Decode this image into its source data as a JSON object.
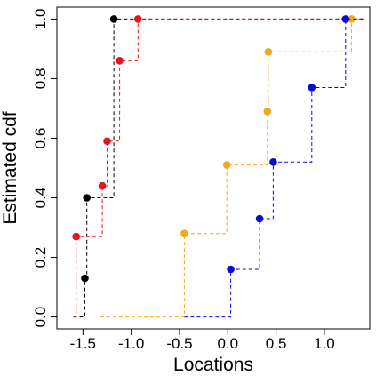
{
  "chart_data": {
    "type": "line",
    "subtype": "empirical-cdf-step",
    "title": "",
    "xlabel": "Locations",
    "ylabel": "Estimated cdf",
    "xlim": [
      -1.65,
      1.35
    ],
    "ylim": [
      0.0,
      1.0
    ],
    "x_ticks": [
      -1.5,
      -1.0,
      -0.5,
      0.0,
      0.5,
      1.0
    ],
    "x_tick_labels": [
      "-1.5",
      "-1.0",
      "-0.5",
      "0.0",
      "0.5",
      "1.0"
    ],
    "y_ticks": [
      0.0,
      0.2,
      0.4,
      0.6,
      0.8,
      1.0
    ],
    "y_tick_labels": [
      "0.0",
      "0.2",
      "0.4",
      "0.6",
      "0.8",
      "1.0"
    ],
    "grid": false,
    "legend": false,
    "line_style": "dashed",
    "series": [
      {
        "color": "#000000",
        "start_x": -1.6,
        "points": [
          {
            "x": -1.48,
            "y": 0.13
          },
          {
            "x": -1.46,
            "y": 0.4
          },
          {
            "x": -1.18,
            "y": 1.0
          }
        ]
      },
      {
        "color": "#e8141c",
        "start_x": -1.6,
        "points": [
          {
            "x": -1.57,
            "y": 0.27
          },
          {
            "x": -1.3,
            "y": 0.44
          },
          {
            "x": -1.25,
            "y": 0.59
          },
          {
            "x": -1.12,
            "y": 0.86
          },
          {
            "x": -0.93,
            "y": 1.0
          }
        ]
      },
      {
        "color": "#f2a81d",
        "start_x": -1.32,
        "points": [
          {
            "x": -0.45,
            "y": 0.28
          },
          {
            "x": -0.01,
            "y": 0.51
          },
          {
            "x": 0.41,
            "y": 0.69
          },
          {
            "x": 0.42,
            "y": 0.89
          },
          {
            "x": 1.28,
            "y": 1.0
          }
        ]
      },
      {
        "color": "#0a0ad6",
        "start_x": -0.45,
        "points": [
          {
            "x": 0.03,
            "y": 0.16
          },
          {
            "x": 0.33,
            "y": 0.33
          },
          {
            "x": 0.47,
            "y": 0.52
          },
          {
            "x": 0.87,
            "y": 0.77
          },
          {
            "x": 1.22,
            "y": 1.0
          }
        ]
      }
    ]
  }
}
